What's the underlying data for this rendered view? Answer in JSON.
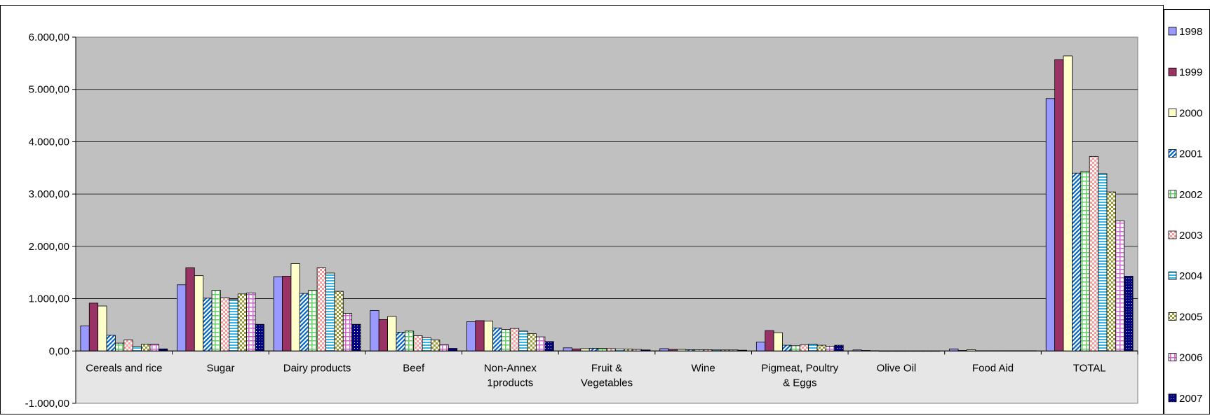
{
  "chart_data": {
    "type": "bar",
    "categories": [
      "Cereals and rice",
      "Sugar",
      "Dairy products",
      "Beef",
      "Non-Annex 1products",
      "Fruit & Vegetables",
      "Wine",
      "Pigmeat, Poultry & Eggs",
      "Olive Oil",
      "Food Aid",
      "TOTAL"
    ],
    "category_lines": [
      [
        "Cereals and rice"
      ],
      [
        "Sugar"
      ],
      [
        "Dairy products"
      ],
      [
        "Beef"
      ],
      [
        "Non-Annex",
        "1products"
      ],
      [
        "Fruit &",
        "Vegetables"
      ],
      [
        "Wine"
      ],
      [
        "Pigmeat, Poultry",
        "& Eggs"
      ],
      [
        "Olive Oil"
      ],
      [
        "Food Aid"
      ],
      [
        "TOTAL"
      ]
    ],
    "series": [
      {
        "name": "1998",
        "values": [
          480,
          1265,
          1420,
          775,
          560,
          60,
          45,
          170,
          20,
          40,
          4825
        ]
      },
      {
        "name": "1999",
        "values": [
          915,
          1590,
          1430,
          600,
          580,
          40,
          30,
          390,
          10,
          10,
          5570
        ]
      },
      {
        "name": "2000",
        "values": [
          860,
          1440,
          1670,
          660,
          570,
          45,
          30,
          350,
          5,
          25,
          5640
        ]
      },
      {
        "name": "2001",
        "values": [
          300,
          1010,
          1100,
          360,
          440,
          50,
          25,
          110,
          0,
          5,
          3400
        ]
      },
      {
        "name": "2002",
        "values": [
          150,
          1160,
          1160,
          380,
          410,
          50,
          25,
          100,
          0,
          5,
          3430
        ]
      },
      {
        "name": "2003",
        "values": [
          210,
          1020,
          1590,
          290,
          430,
          45,
          25,
          115,
          0,
          5,
          3720
        ]
      },
      {
        "name": "2004",
        "values": [
          90,
          980,
          1490,
          250,
          380,
          40,
          20,
          130,
          0,
          5,
          3390
        ]
      },
      {
        "name": "2005",
        "values": [
          130,
          1090,
          1140,
          210,
          330,
          35,
          20,
          110,
          0,
          5,
          3040
        ]
      },
      {
        "name": "2006",
        "values": [
          130,
          1110,
          720,
          120,
          270,
          30,
          20,
          90,
          0,
          5,
          2490
        ]
      },
      {
        "name": "2007",
        "values": [
          40,
          510,
          510,
          50,
          180,
          20,
          15,
          110,
          0,
          5,
          1430
        ]
      }
    ],
    "series_colors": [
      "#9999FF",
      "#993366",
      "#FFFFCC",
      "#0066CC",
      "#66CC66",
      "#FF9999",
      "#33B5E8",
      "#999933",
      "#CC66CC",
      "#000080"
    ],
    "series_patterns": [
      "solid",
      "solid",
      "solid",
      "diagonal",
      "grid",
      "checker",
      "horizontal",
      "checker",
      "grid",
      "dots"
    ],
    "y_ticks": [
      "6.000,00",
      "5.000,00",
      "4.000,00",
      "3.000,00",
      "2.000,00",
      "1.000,00",
      "0,00",
      "-1.000,00"
    ],
    "ylim": [
      -1000,
      6000
    ],
    "title": "",
    "xlabel": "",
    "ylabel": "",
    "grid": true,
    "legend_position": "right"
  }
}
